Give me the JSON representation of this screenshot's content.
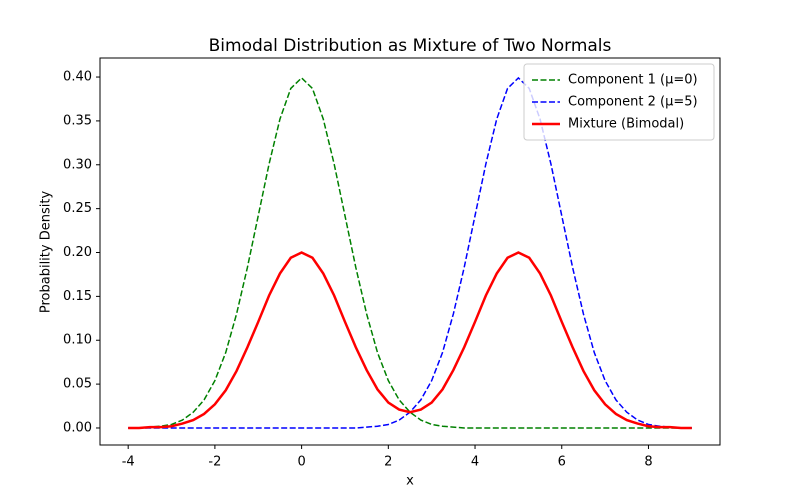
{
  "chart_data": {
    "type": "line",
    "title": "Bimodal Distribution as Mixture of Two Normals",
    "xlabel": "x",
    "ylabel": "Probability Density",
    "x": [
      -4,
      -3.75,
      -3.5,
      -3.25,
      -3,
      -2.75,
      -2.5,
      -2.25,
      -2,
      -1.75,
      -1.5,
      -1.25,
      -1,
      -0.75,
      -0.5,
      -0.25,
      0,
      0.25,
      0.5,
      0.75,
      1,
      1.25,
      1.5,
      1.75,
      2,
      2.25,
      2.5,
      2.75,
      3,
      3.25,
      3.5,
      3.75,
      4,
      4.25,
      4.5,
      4.75,
      5,
      5.25,
      5.5,
      5.75,
      6,
      6.25,
      6.5,
      6.75,
      7,
      7.25,
      7.5,
      7.75,
      8,
      8.25,
      8.5,
      8.75,
      9
    ],
    "series": [
      {
        "name": "Component 1 (μ=0)",
        "color": "#008000",
        "linestyle": "dashed",
        "linewidth": 1.5,
        "values": [
          0,
          0,
          0.001,
          0.002,
          0.004,
          0.009,
          0.018,
          0.032,
          0.054,
          0.086,
          0.13,
          0.183,
          0.242,
          0.301,
          0.352,
          0.387,
          0.399,
          0.387,
          0.352,
          0.301,
          0.242,
          0.183,
          0.13,
          0.086,
          0.054,
          0.032,
          0.018,
          0.009,
          0.004,
          0.002,
          0.001,
          0,
          0,
          0,
          0,
          0,
          0,
          0,
          0,
          0,
          0,
          0,
          0,
          0,
          0,
          0,
          0,
          0,
          0,
          0,
          0,
          0,
          0
        ]
      },
      {
        "name": "Component 2 (μ=5)",
        "color": "#0000ff",
        "linestyle": "dashed",
        "linewidth": 1.5,
        "values": [
          0,
          0,
          0,
          0,
          0,
          0,
          0,
          0,
          0,
          0,
          0,
          0,
          0,
          0,
          0,
          0,
          0,
          0,
          0,
          0,
          0,
          0,
          0.001,
          0.002,
          0.004,
          0.009,
          0.018,
          0.032,
          0.054,
          0.086,
          0.13,
          0.183,
          0.242,
          0.301,
          0.352,
          0.387,
          0.399,
          0.387,
          0.352,
          0.301,
          0.242,
          0.183,
          0.13,
          0.086,
          0.054,
          0.032,
          0.018,
          0.009,
          0.004,
          0.002,
          0.001,
          0,
          0
        ]
      },
      {
        "name": "Mixture (Bimodal)",
        "color": "#ff0000",
        "linestyle": "solid",
        "linewidth": 2.5,
        "values": [
          0,
          0,
          0.001,
          0.001,
          0.002,
          0.005,
          0.009,
          0.016,
          0.027,
          0.043,
          0.065,
          0.092,
          0.121,
          0.151,
          0.176,
          0.194,
          0.2,
          0.194,
          0.176,
          0.151,
          0.121,
          0.092,
          0.066,
          0.044,
          0.029,
          0.021,
          0.018,
          0.021,
          0.029,
          0.044,
          0.066,
          0.092,
          0.121,
          0.151,
          0.176,
          0.194,
          0.2,
          0.194,
          0.176,
          0.151,
          0.121,
          0.092,
          0.065,
          0.043,
          0.027,
          0.016,
          0.009,
          0.005,
          0.002,
          0.001,
          0.001,
          0,
          0
        ]
      }
    ],
    "xlim": [
      -4.65,
      9.65
    ],
    "xticks": [
      -4,
      -2,
      0,
      2,
      4,
      6,
      8
    ],
    "ylim": [
      -0.0194,
      0.4217
    ],
    "yticks": [
      {
        "value": 0,
        "label": "0.00"
      },
      {
        "value": 0.05,
        "label": "0.05"
      },
      {
        "value": 0.1,
        "label": "0.10"
      },
      {
        "value": 0.15,
        "label": "0.15"
      },
      {
        "value": 0.2,
        "label": "0.20"
      },
      {
        "value": 0.25,
        "label": "0.25"
      },
      {
        "value": 0.3,
        "label": "0.30"
      },
      {
        "value": 0.35,
        "label": "0.35"
      },
      {
        "value": 0.4,
        "label": "0.40"
      }
    ],
    "legend": "upper right",
    "grid": false
  }
}
